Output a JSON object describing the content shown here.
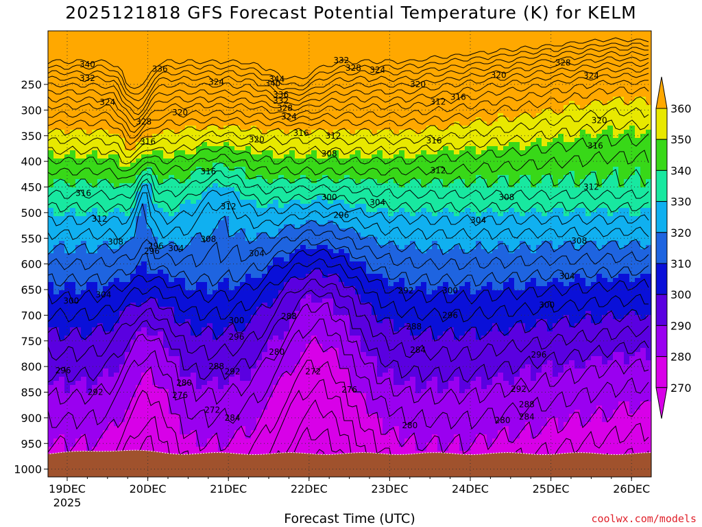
{
  "chart_data": {
    "type": "heatmap",
    "title": "2025121818 GFS Forecast Potential Temperature (K) for KELM",
    "xlabel": "Forecast Time (UTC)",
    "ylabel": "",
    "x_ticks": [
      "19DEC",
      "20DEC",
      "21DEC",
      "22DEC",
      "23DEC",
      "24DEC",
      "25DEC",
      "26DEC"
    ],
    "x_tick_sub": "2025",
    "y_ticks": [
      250,
      300,
      350,
      400,
      450,
      500,
      550,
      600,
      650,
      700,
      750,
      800,
      850,
      900,
      950,
      1000
    ],
    "colorbar": {
      "levels": [
        270,
        280,
        290,
        300,
        310,
        320,
        330,
        340,
        350,
        360
      ],
      "colors": [
        "#d800e8",
        "#9a00f0",
        "#5a00e0",
        "#0a10d8",
        "#1e64e0",
        "#10b0f0",
        "#18e8a0",
        "#38d818",
        "#e8e800",
        "#ffa800"
      ]
    },
    "contour_labels": [
      {
        "t": 19.25,
        "p": 211,
        "v": "340"
      },
      {
        "t": 19.25,
        "p": 238,
        "v": "332"
      },
      {
        "t": 19.5,
        "p": 285,
        "v": "324"
      },
      {
        "t": 19.95,
        "p": 323,
        "v": "328"
      },
      {
        "t": 20.15,
        "p": 220,
        "v": "336"
      },
      {
        "t": 20.4,
        "p": 305,
        "v": "320"
      },
      {
        "t": 20.0,
        "p": 362,
        "v": "316"
      },
      {
        "t": 20.85,
        "p": 245,
        "v": "324"
      },
      {
        "t": 21.6,
        "p": 240,
        "v": "344"
      },
      {
        "t": 21.55,
        "p": 248,
        "v": "340"
      },
      {
        "t": 21.65,
        "p": 270,
        "v": "336"
      },
      {
        "t": 21.65,
        "p": 282,
        "v": "332"
      },
      {
        "t": 21.7,
        "p": 296,
        "v": "328"
      },
      {
        "t": 21.75,
        "p": 313,
        "v": "324"
      },
      {
        "t": 22.4,
        "p": 203,
        "v": "332"
      },
      {
        "t": 22.55,
        "p": 218,
        "v": "328"
      },
      {
        "t": 22.85,
        "p": 222,
        "v": "324"
      },
      {
        "t": 23.35,
        "p": 250,
        "v": "320"
      },
      {
        "t": 23.6,
        "p": 284,
        "v": "312"
      },
      {
        "t": 23.85,
        "p": 275,
        "v": "316"
      },
      {
        "t": 24.35,
        "p": 232,
        "v": "320"
      },
      {
        "t": 25.15,
        "p": 208,
        "v": "328"
      },
      {
        "t": 25.5,
        "p": 233,
        "v": "324"
      },
      {
        "t": 25.6,
        "p": 320,
        "v": "320"
      },
      {
        "t": 25.55,
        "p": 370,
        "v": "316"
      },
      {
        "t": 25.5,
        "p": 450,
        "v": "312"
      },
      {
        "t": 25.35,
        "p": 555,
        "v": "308"
      },
      {
        "t": 25.2,
        "p": 624,
        "v": "304"
      },
      {
        "t": 24.95,
        "p": 680,
        "v": "300"
      },
      {
        "t": 24.85,
        "p": 777,
        "v": "296"
      },
      {
        "t": 24.6,
        "p": 844,
        "v": "292"
      },
      {
        "t": 24.7,
        "p": 874,
        "v": "288"
      },
      {
        "t": 24.7,
        "p": 898,
        "v": "284"
      },
      {
        "t": 24.4,
        "p": 905,
        "v": "280"
      },
      {
        "t": 21.35,
        "p": 358,
        "v": "320"
      },
      {
        "t": 21.9,
        "p": 345,
        "v": "316"
      },
      {
        "t": 22.3,
        "p": 350,
        "v": "312"
      },
      {
        "t": 23.55,
        "p": 360,
        "v": "316"
      },
      {
        "t": 22.25,
        "p": 385,
        "v": "308"
      },
      {
        "t": 23.6,
        "p": 418,
        "v": "312"
      },
      {
        "t": 22.25,
        "p": 470,
        "v": "300"
      },
      {
        "t": 22.4,
        "p": 505,
        "v": "296"
      },
      {
        "t": 22.85,
        "p": 480,
        "v": "304"
      },
      {
        "t": 24.1,
        "p": 515,
        "v": "304"
      },
      {
        "t": 24.45,
        "p": 470,
        "v": "308"
      },
      {
        "t": 20.75,
        "p": 420,
        "v": "316"
      },
      {
        "t": 21.0,
        "p": 488,
        "v": "312"
      },
      {
        "t": 20.75,
        "p": 552,
        "v": "308"
      },
      {
        "t": 20.35,
        "p": 570,
        "v": "304"
      },
      {
        "t": 21.35,
        "p": 580,
        "v": "304"
      },
      {
        "t": 20.1,
        "p": 565,
        "v": "296"
      },
      {
        "t": 19.2,
        "p": 462,
        "v": "316"
      },
      {
        "t": 19.4,
        "p": 512,
        "v": "312"
      },
      {
        "t": 19.6,
        "p": 557,
        "v": "308"
      },
      {
        "t": 19.45,
        "p": 660,
        "v": "304"
      },
      {
        "t": 19.05,
        "p": 672,
        "v": "300"
      },
      {
        "t": 18.95,
        "p": 808,
        "v": "296"
      },
      {
        "t": 19.35,
        "p": 850,
        "v": "292"
      },
      {
        "t": 23.2,
        "p": 652,
        "v": "292"
      },
      {
        "t": 23.75,
        "p": 652,
        "v": "300"
      },
      {
        "t": 23.75,
        "p": 700,
        "v": "296"
      },
      {
        "t": 23.3,
        "p": 722,
        "v": "288"
      },
      {
        "t": 23.35,
        "p": 768,
        "v": "284"
      },
      {
        "t": 21.75,
        "p": 702,
        "v": "288"
      },
      {
        "t": 21.1,
        "p": 710,
        "v": "300"
      },
      {
        "t": 21.1,
        "p": 742,
        "v": "296"
      },
      {
        "t": 20.85,
        "p": 800,
        "v": "288"
      },
      {
        "t": 21.05,
        "p": 810,
        "v": "292"
      },
      {
        "t": 21.6,
        "p": 772,
        "v": "280"
      },
      {
        "t": 22.05,
        "p": 810,
        "v": "272"
      },
      {
        "t": 22.5,
        "p": 845,
        "v": "276"
      },
      {
        "t": 20.45,
        "p": 832,
        "v": "280"
      },
      {
        "t": 20.4,
        "p": 856,
        "v": "276"
      },
      {
        "t": 20.8,
        "p": 885,
        "v": "272"
      },
      {
        "t": 21.05,
        "p": 900,
        "v": "284"
      },
      {
        "t": 23.25,
        "p": 915,
        "v": "280"
      },
      {
        "t": 20.05,
        "p": 575,
        "v": "296"
      }
    ]
  }
}
